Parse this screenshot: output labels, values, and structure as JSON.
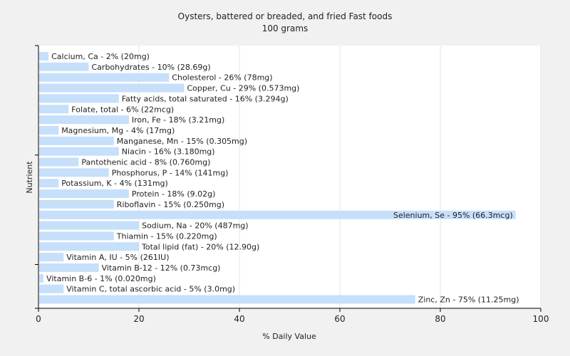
{
  "chart_data": {
    "type": "bar",
    "orientation": "horizontal",
    "title": "Oysters, battered or breaded, and fried Fast foods",
    "subtitle": "100 grams",
    "xlabel": "% Daily Value",
    "ylabel": "Nutrient",
    "xlim": [
      0,
      100
    ],
    "xticks": [
      0,
      20,
      40,
      60,
      80,
      100
    ],
    "grid": true,
    "bar_color": "#c6dffb",
    "background": "#ffffff",
    "categories": [
      "Calcium, Ca",
      "Carbohydrates",
      "Cholesterol",
      "Copper, Cu",
      "Fatty acids, total saturated",
      "Folate, total",
      "Iron, Fe",
      "Magnesium, Mg",
      "Manganese, Mn",
      "Niacin",
      "Pantothenic acid",
      "Phosphorus, P",
      "Potassium, K",
      "Protein",
      "Riboflavin",
      "Selenium, Se",
      "Sodium, Na",
      "Thiamin",
      "Total lipid (fat)",
      "Vitamin A, IU",
      "Vitamin B-12",
      "Vitamin B-6",
      "Vitamin C, total ascorbic acid",
      "Zinc, Zn"
    ],
    "values": [
      2,
      10,
      26,
      29,
      16,
      6,
      18,
      4,
      15,
      16,
      8,
      14,
      4,
      18,
      15,
      95,
      20,
      15,
      20,
      5,
      12,
      1,
      5,
      75
    ],
    "labels": [
      "Calcium, Ca - 2% (20mg)",
      "Carbohydrates - 10% (28.69g)",
      "Cholesterol - 26% (78mg)",
      "Copper, Cu - 29% (0.573mg)",
      "Fatty acids, total saturated - 16% (3.294g)",
      "Folate, total - 6% (22mcg)",
      "Iron, Fe - 18% (3.21mg)",
      "Magnesium, Mg - 4% (17mg)",
      "Manganese, Mn - 15% (0.305mg)",
      "Niacin - 16% (3.180mg)",
      "Pantothenic acid - 8% (0.760mg)",
      "Phosphorus, P - 14% (141mg)",
      "Potassium, K - 4% (131mg)",
      "Protein - 18% (9.02g)",
      "Riboflavin - 15% (0.250mg)",
      "Selenium, Se - 95% (66.3mcg)",
      "Sodium, Na - 20% (487mg)",
      "Thiamin - 15% (0.220mg)",
      "Total lipid (fat) - 20% (12.90g)",
      "Vitamin A, IU - 5% (261IU)",
      "Vitamin B-12 - 12% (0.73mcg)",
      "Vitamin B-6 - 1% (0.020mg)",
      "Vitamin C, total ascorbic acid - 5% (3.0mg)",
      "Zinc, Zn - 75% (11.25mg)"
    ]
  }
}
